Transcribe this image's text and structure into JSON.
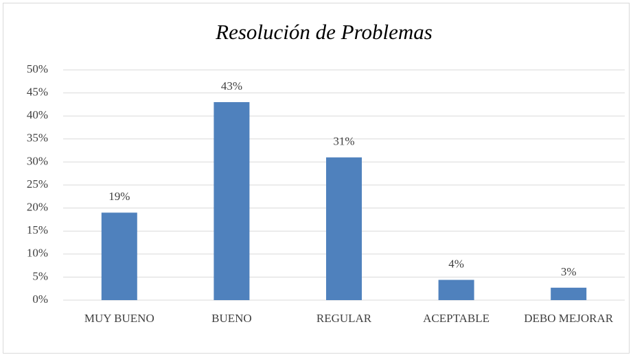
{
  "chart_data": {
    "type": "bar",
    "title": "Resolución de Problemas",
    "categories": [
      "MUY BUENO",
      "BUENO",
      "REGULAR",
      "ACEPTABLE",
      "DEBO MEJORAR"
    ],
    "values": [
      19,
      43,
      31,
      4.4,
      2.7
    ],
    "value_labels": [
      "19%",
      "43%",
      "31%",
      "4%",
      "3%"
    ],
    "color": "#4f81bd",
    "ylim": [
      0,
      50
    ],
    "yticks": [
      {
        "value": 0,
        "label": "0%"
      },
      {
        "value": 5,
        "label": "5%"
      },
      {
        "value": 10,
        "label": "10%"
      },
      {
        "value": 15,
        "label": "15%"
      },
      {
        "value": 20,
        "label": "20%"
      },
      {
        "value": 25,
        "label": "25%"
      },
      {
        "value": 30,
        "label": "30%"
      },
      {
        "value": 35,
        "label": "35%"
      },
      {
        "value": 40,
        "label": "40%"
      },
      {
        "value": 45,
        "label": "45%"
      },
      {
        "value": 50,
        "label": "50%"
      }
    ],
    "grid": true
  }
}
